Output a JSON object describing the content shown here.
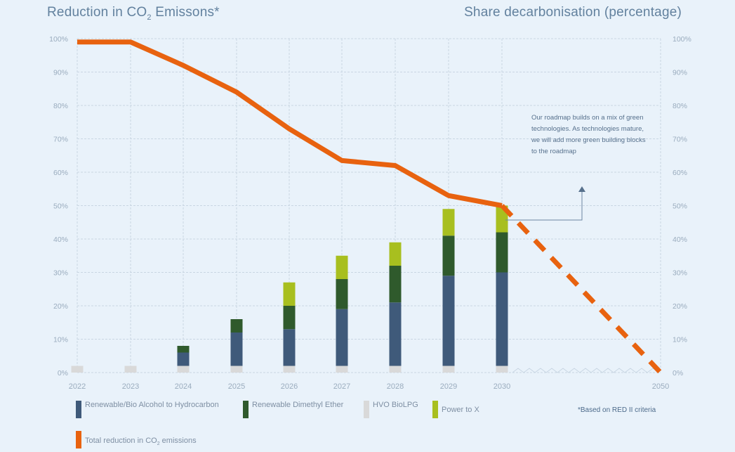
{
  "header": {
    "left_title_main": "Reduction in CO",
    "left_title_sub": "2",
    "left_title_tail": " Emissons*",
    "right_title": "Share decarbonisation (percentage)"
  },
  "note": "Our roadmap builds on a mix of green technologies. As technologies mature, we will add more green building blocks to the roadmap",
  "footnote": "*Based on RED II criteria",
  "legend": [
    {
      "label": "Renewable/Bio Alcohol to Hydrocarbon",
      "color": "#3f5a7a"
    },
    {
      "label": "Renewable Dimethyl Ether",
      "color": "#2f5a2c"
    },
    {
      "label": "HVO BioLPG",
      "color": "#d9d9d9"
    },
    {
      "label": "Power to X",
      "color": "#a8bf1f"
    },
    {
      "label_main": "Total reduction in CO",
      "label_sub": "2",
      "label_tail": " emissions",
      "color": "#e8620f"
    }
  ],
  "chart_data": {
    "type": "bar",
    "categories": [
      "2022",
      "2023",
      "2024",
      "2025",
      "2026",
      "2027",
      "2028",
      "2029",
      "2030",
      "2050"
    ],
    "stacked": true,
    "series": [
      {
        "name": "HVO BioLPG",
        "color": "#d9d9d9",
        "values": [
          2,
          2,
          2,
          2,
          2,
          2,
          2,
          2,
          2,
          null
        ]
      },
      {
        "name": "Renewable/Bio Alcohol to Hydrocarbon",
        "color": "#3f5a7a",
        "values": [
          0,
          0,
          4,
          10,
          11,
          17,
          19,
          27,
          28,
          null
        ]
      },
      {
        "name": "Renewable Dimethyl Ether",
        "color": "#2f5a2c",
        "values": [
          0,
          0,
          2,
          4,
          7,
          9,
          11,
          12,
          12,
          null
        ]
      },
      {
        "name": "Power to X",
        "color": "#a8bf1f",
        "values": [
          0,
          0,
          0,
          0,
          7,
          7,
          7,
          8,
          8,
          null
        ]
      }
    ],
    "line": {
      "name": "Total reduction in CO2 emissions",
      "color": "#e8620f",
      "values": [
        99,
        99,
        92,
        84,
        73,
        63.5,
        62,
        53,
        50,
        0
      ],
      "dashed_from": "2030"
    },
    "ylim": [
      0,
      100
    ],
    "y_ticks": [
      "0%",
      "10%",
      "20%",
      "30%",
      "40%",
      "50%",
      "60%",
      "70%",
      "80%",
      "90%",
      "100%"
    ],
    "right_axis_ticks": [
      "0%",
      "10%",
      "20%",
      "30%",
      "40%",
      "50%",
      "60%",
      "70%",
      "80%",
      "90%",
      "100%"
    ],
    "grid": true,
    "axis_break": "2030-2050"
  }
}
